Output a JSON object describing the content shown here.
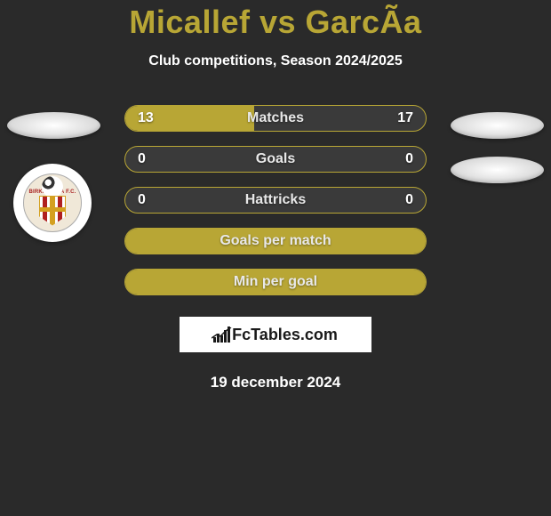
{
  "title": "Micallef vs GarcÃ­a",
  "subtitle": "Club competitions, Season 2024/2025",
  "date": "19 december 2024",
  "branding": "FcTables.com",
  "colors": {
    "accent": "#b8a635",
    "background": "#2a2a2a",
    "pill_bg": "#3a3a3a",
    "text": "#ffffff"
  },
  "badge": {
    "name": "BIRKIRKARA F.C.",
    "stripe_color": "#b02020",
    "cross_color": "#d4a020"
  },
  "stats": [
    {
      "label": "Matches",
      "left_value": "13",
      "right_value": "17",
      "left_fill_pct": 43,
      "right_fill_pct": 0
    },
    {
      "label": "Goals",
      "left_value": "0",
      "right_value": "0",
      "left_fill_pct": 0,
      "right_fill_pct": 0
    },
    {
      "label": "Hattricks",
      "left_value": "0",
      "right_value": "0",
      "left_fill_pct": 0,
      "right_fill_pct": 0
    },
    {
      "label": "Goals per match",
      "left_value": "",
      "right_value": "",
      "left_fill_pct": 100,
      "right_fill_pct": 0
    },
    {
      "label": "Min per goal",
      "left_value": "",
      "right_value": "",
      "left_fill_pct": 100,
      "right_fill_pct": 0
    }
  ]
}
